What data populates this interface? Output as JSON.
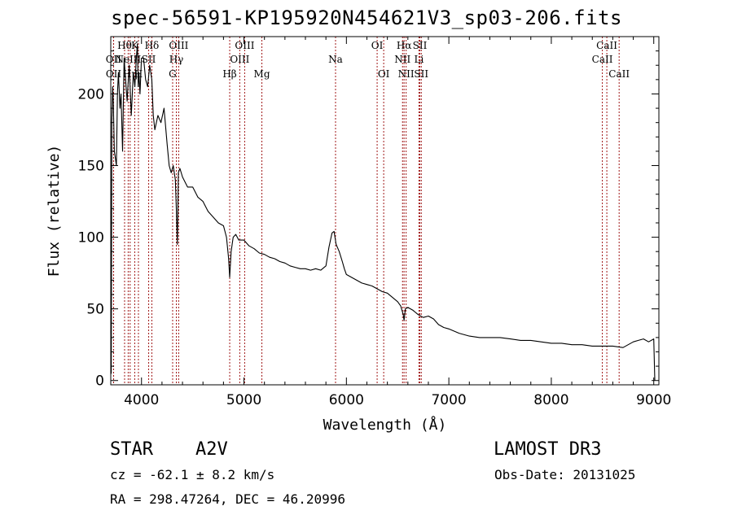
{
  "header": {
    "title": "spec-56591-KP195920N454621V3_sp03-206.fits"
  },
  "info": {
    "object_class": "STAR",
    "subclass": "A2V",
    "survey": "LAMOST DR3",
    "cz": "cz = -62.1 ± 8.2 km/s",
    "obs_date": "Obs-Date: 20131025",
    "coords": "RA = 298.47264, DEC =  46.20996"
  },
  "chart_data": {
    "type": "line",
    "title": "spec-56591-KP195920N454621V3_sp03-206.fits",
    "xlabel": "Wavelength (Å)",
    "ylabel": "Flux (relative)",
    "xlim": [
      3700,
      9050
    ],
    "ylim": [
      -3,
      240
    ],
    "xticks": [
      4000,
      5000,
      6000,
      7000,
      8000,
      9000
    ],
    "yticks": [
      0,
      50,
      100,
      150,
      200
    ],
    "series": [
      {
        "name": "flux",
        "x": [
          3700,
          3705,
          3710,
          3718,
          3725,
          3735,
          3745,
          3755,
          3765,
          3775,
          3790,
          3800,
          3815,
          3830,
          3845,
          3860,
          3880,
          3900,
          3920,
          3935,
          3950,
          3960,
          3968,
          3975,
          3985,
          4000,
          4020,
          4040,
          4060,
          4080,
          4101,
          4115,
          4130,
          4160,
          4190,
          4220,
          4250,
          4270,
          4290,
          4310,
          4330,
          4340,
          4350,
          4360,
          4375,
          4400,
          4450,
          4500,
          4550,
          4600,
          4650,
          4700,
          4750,
          4800,
          4830,
          4850,
          4861,
          4875,
          4895,
          4920,
          4950,
          5000,
          5050,
          5100,
          5150,
          5200,
          5250,
          5300,
          5350,
          5400,
          5450,
          5500,
          5550,
          5600,
          5650,
          5700,
          5750,
          5800,
          5830,
          5860,
          5880,
          5900,
          5930,
          5960,
          5980,
          6000,
          6050,
          6100,
          6150,
          6200,
          6250,
          6300,
          6350,
          6400,
          6450,
          6500,
          6530,
          6555,
          6563,
          6575,
          6600,
          6650,
          6700,
          6750,
          6800,
          6850,
          6900,
          6950,
          7000,
          7100,
          7200,
          7300,
          7400,
          7500,
          7600,
          7700,
          7800,
          7900,
          8000,
          8100,
          8200,
          8300,
          8400,
          8500,
          8600,
          8700,
          8800,
          8850,
          8900,
          8950,
          9000,
          9010
        ],
        "values": [
          35,
          5,
          180,
          205,
          195,
          160,
          155,
          150,
          200,
          215,
          190,
          200,
          160,
          225,
          210,
          195,
          220,
          185,
          215,
          205,
          225,
          235,
          205,
          215,
          200,
          225,
          225,
          210,
          205,
          220,
          210,
          185,
          175,
          185,
          180,
          190,
          165,
          150,
          145,
          150,
          140,
          120,
          95,
          145,
          148,
          142,
          135,
          135,
          128,
          125,
          118,
          114,
          110,
          108,
          100,
          85,
          72,
          90,
          100,
          102,
          98,
          98,
          94,
          92,
          89,
          88,
          86,
          85,
          83,
          82,
          80,
          79,
          78,
          78,
          77,
          78,
          77,
          80,
          93,
          103,
          104,
          95,
          90,
          83,
          78,
          74,
          72,
          70,
          68,
          67,
          66,
          64,
          62,
          61,
          58,
          55,
          52,
          46,
          42,
          50,
          51,
          49,
          46,
          44,
          45,
          43,
          39,
          37,
          36,
          33,
          31,
          30,
          30,
          30,
          29,
          28,
          28,
          27,
          26,
          26,
          25,
          25,
          24,
          24,
          24,
          23,
          27,
          28,
          29,
          27,
          29,
          0
        ]
      }
    ],
    "lines": [
      {
        "wl": 3727,
        "label": "OII",
        "row": 2
      },
      {
        "wl": 3728,
        "label": "OII",
        "row": 3
      },
      {
        "wl": 3835,
        "label": "Hθ",
        "row": 1
      },
      {
        "wl": 3870,
        "label": "NeIII",
        "row": 2
      },
      {
        "wl": 3889,
        "label": "Hη",
        "row": 3
      },
      {
        "wl": 3934,
        "label": "K",
        "row": 1
      },
      {
        "wl": 3970,
        "label": "H",
        "row": 3
      },
      {
        "wl": 4070,
        "label": "SII",
        "row": 2
      },
      {
        "wl": 4101,
        "label": "Hδ",
        "row": 1
      },
      {
        "wl": 4304,
        "label": "G",
        "row": 3
      },
      {
        "wl": 4340,
        "label": "Hγ",
        "row": 2
      },
      {
        "wl": 4363,
        "label": "OIII",
        "row": 1
      },
      {
        "wl": 4861,
        "label": "Hβ",
        "row": 3
      },
      {
        "wl": 4959,
        "label": "OIII",
        "row": 2
      },
      {
        "wl": 5007,
        "label": "OIII",
        "row": 1
      },
      {
        "wl": 5175,
        "label": "Mg",
        "row": 3
      },
      {
        "wl": 5894,
        "label": "Na",
        "row": 2
      },
      {
        "wl": 6300,
        "label": "OI",
        "row": 1
      },
      {
        "wl": 6364,
        "label": "OI",
        "row": 3
      },
      {
        "wl": 6548,
        "label": "NII",
        "row": 2
      },
      {
        "wl": 6563,
        "label": "Hα",
        "row": 1
      },
      {
        "wl": 6583,
        "label": "NII",
        "row": 3
      },
      {
        "wl": 6708,
        "label": "Li",
        "row": 2
      },
      {
        "wl": 6717,
        "label": "SII",
        "row": 1
      },
      {
        "wl": 6731,
        "label": "SII",
        "row": 3
      },
      {
        "wl": 8498,
        "label": "CaII",
        "row": 2
      },
      {
        "wl": 8542,
        "label": "CaII",
        "row": 1
      },
      {
        "wl": 8662,
        "label": "CaII",
        "row": 3
      }
    ],
    "colors": {
      "spectrum": "#000000",
      "line_marker": "#a01818"
    }
  }
}
